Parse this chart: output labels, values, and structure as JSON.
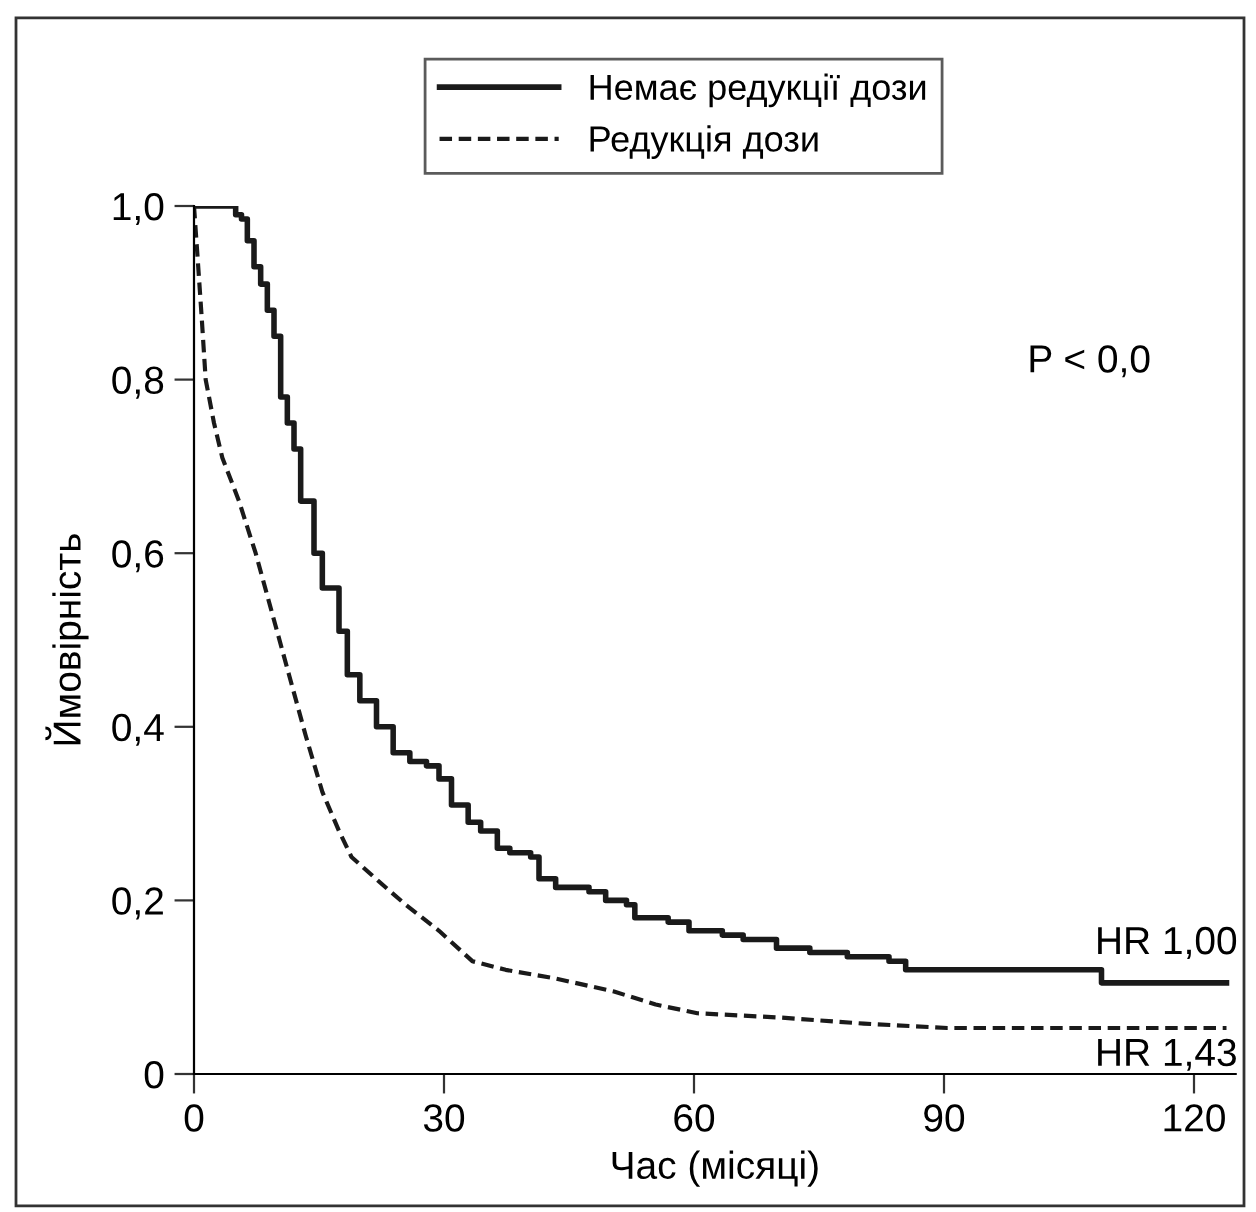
{
  "chart_data": {
    "type": "line",
    "xlabel": "Час (місяці)",
    "ylabel": "Ймовірність",
    "xlim": [
      0,
      125
    ],
    "ylim": [
      0,
      1.0
    ],
    "xticks": [
      0,
      30,
      60,
      90,
      120
    ],
    "yticks": [
      0,
      {
        "value": 0.2,
        "label": "0,2"
      },
      {
        "value": 0.4,
        "label": "0,4"
      },
      {
        "value": 0.6,
        "label": "0,6"
      },
      {
        "value": 0.8,
        "label": "0,8"
      },
      {
        "value": 1.0,
        "label": "1,0"
      }
    ],
    "grid": false,
    "legend": "top",
    "series": [
      {
        "name": "Немає редукції дози",
        "type": "step",
        "color": "#1a1a1a",
        "line_style": "solid",
        "x": [
          0,
          4.2,
          5,
          5.7,
          6.4,
          7.2,
          8,
          8.8,
          9.6,
          10.4,
          11.2,
          12,
          12.8,
          14.4,
          15.4,
          17.4,
          18.4,
          19.9,
          21.9,
          23.9,
          25.9,
          27.9,
          29.4,
          30.9,
          32.9,
          34.4,
          36.4,
          37.9,
          40.4,
          41.4,
          43.4,
          47.4,
          49.4,
          51.9,
          52.9,
          56.9,
          59.4,
          63.4,
          65.9,
          69.9,
          73.9,
          78.4,
          83.4,
          85.4,
          106.4,
          108.9,
          123.9
        ],
        "values": [
          1.0,
          1.0,
          0.99,
          0.985,
          0.96,
          0.93,
          0.91,
          0.88,
          0.85,
          0.78,
          0.75,
          0.72,
          0.66,
          0.6,
          0.56,
          0.51,
          0.46,
          0.43,
          0.4,
          0.37,
          0.36,
          0.355,
          0.34,
          0.31,
          0.29,
          0.28,
          0.26,
          0.255,
          0.25,
          0.225,
          0.215,
          0.21,
          0.2,
          0.195,
          0.18,
          0.175,
          0.165,
          0.16,
          0.155,
          0.145,
          0.14,
          0.135,
          0.13,
          0.12,
          0.12,
          0.105,
          0.105
        ]
      },
      {
        "name": "Редукція дози",
        "color": "#1a1a1a",
        "line_style": "dashed",
        "x": [
          0,
          0.4,
          0.9,
          1.4,
          2.4,
          3.4,
          5.4,
          7.4,
          9.4,
          11.4,
          13.4,
          15.4,
          17.4,
          18.9,
          22.4,
          25.4,
          29.4,
          33.4,
          37.4,
          43.4,
          50.4,
          55.4,
          60.4,
          70.4,
          80.4,
          90.4,
          100.4,
          123.9
        ],
        "values": [
          1.0,
          0.945,
          0.875,
          0.8,
          0.75,
          0.71,
          0.66,
          0.6,
          0.53,
          0.46,
          0.39,
          0.325,
          0.28,
          0.25,
          0.22,
          0.195,
          0.165,
          0.13,
          0.12,
          0.11,
          0.095,
          0.08,
          0.07,
          0.065,
          0.058,
          0.053,
          0.053,
          0.053
        ]
      }
    ],
    "annotations": [
      "P < 0,0",
      {
        "text": "HR 1,00",
        "x": 123.9,
        "y": 0.105
      },
      {
        "text": "HR 1,43",
        "x": 123.9,
        "y": 0.053
      }
    ]
  }
}
